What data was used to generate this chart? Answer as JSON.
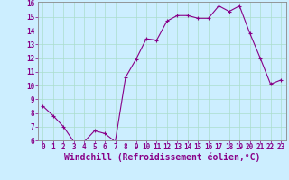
{
  "x": [
    0,
    1,
    2,
    3,
    4,
    5,
    6,
    7,
    8,
    9,
    10,
    11,
    12,
    13,
    14,
    15,
    16,
    17,
    18,
    19,
    20,
    21,
    22,
    23
  ],
  "y": [
    8.5,
    7.8,
    7.0,
    5.9,
    5.9,
    6.7,
    6.5,
    5.9,
    10.6,
    11.9,
    13.4,
    13.3,
    14.7,
    15.1,
    15.1,
    14.9,
    14.9,
    15.8,
    15.4,
    15.8,
    13.8,
    12.0,
    10.1,
    10.4
  ],
  "line_color": "#880088",
  "marker": "+",
  "marker_size": 3,
  "bg_color": "#cceeff",
  "grid_color": "#aaddcc",
  "xlabel": "Windchill (Refroidissement éolien,°C)",
  "xlabel_color": "#880088",
  "tick_color": "#880088",
  "spine_color": "#888888",
  "ylim": [
    6,
    16
  ],
  "xlim": [
    -0.5,
    23.5
  ],
  "yticks": [
    6,
    7,
    8,
    9,
    10,
    11,
    12,
    13,
    14,
    15,
    16
  ],
  "xticks": [
    0,
    1,
    2,
    3,
    4,
    5,
    6,
    7,
    8,
    9,
    10,
    11,
    12,
    13,
    14,
    15,
    16,
    17,
    18,
    19,
    20,
    21,
    22,
    23
  ],
  "tick_fontsize": 5.5,
  "xlabel_fontsize": 7.0,
  "line_width": 0.8,
  "marker_edge_width": 0.8
}
